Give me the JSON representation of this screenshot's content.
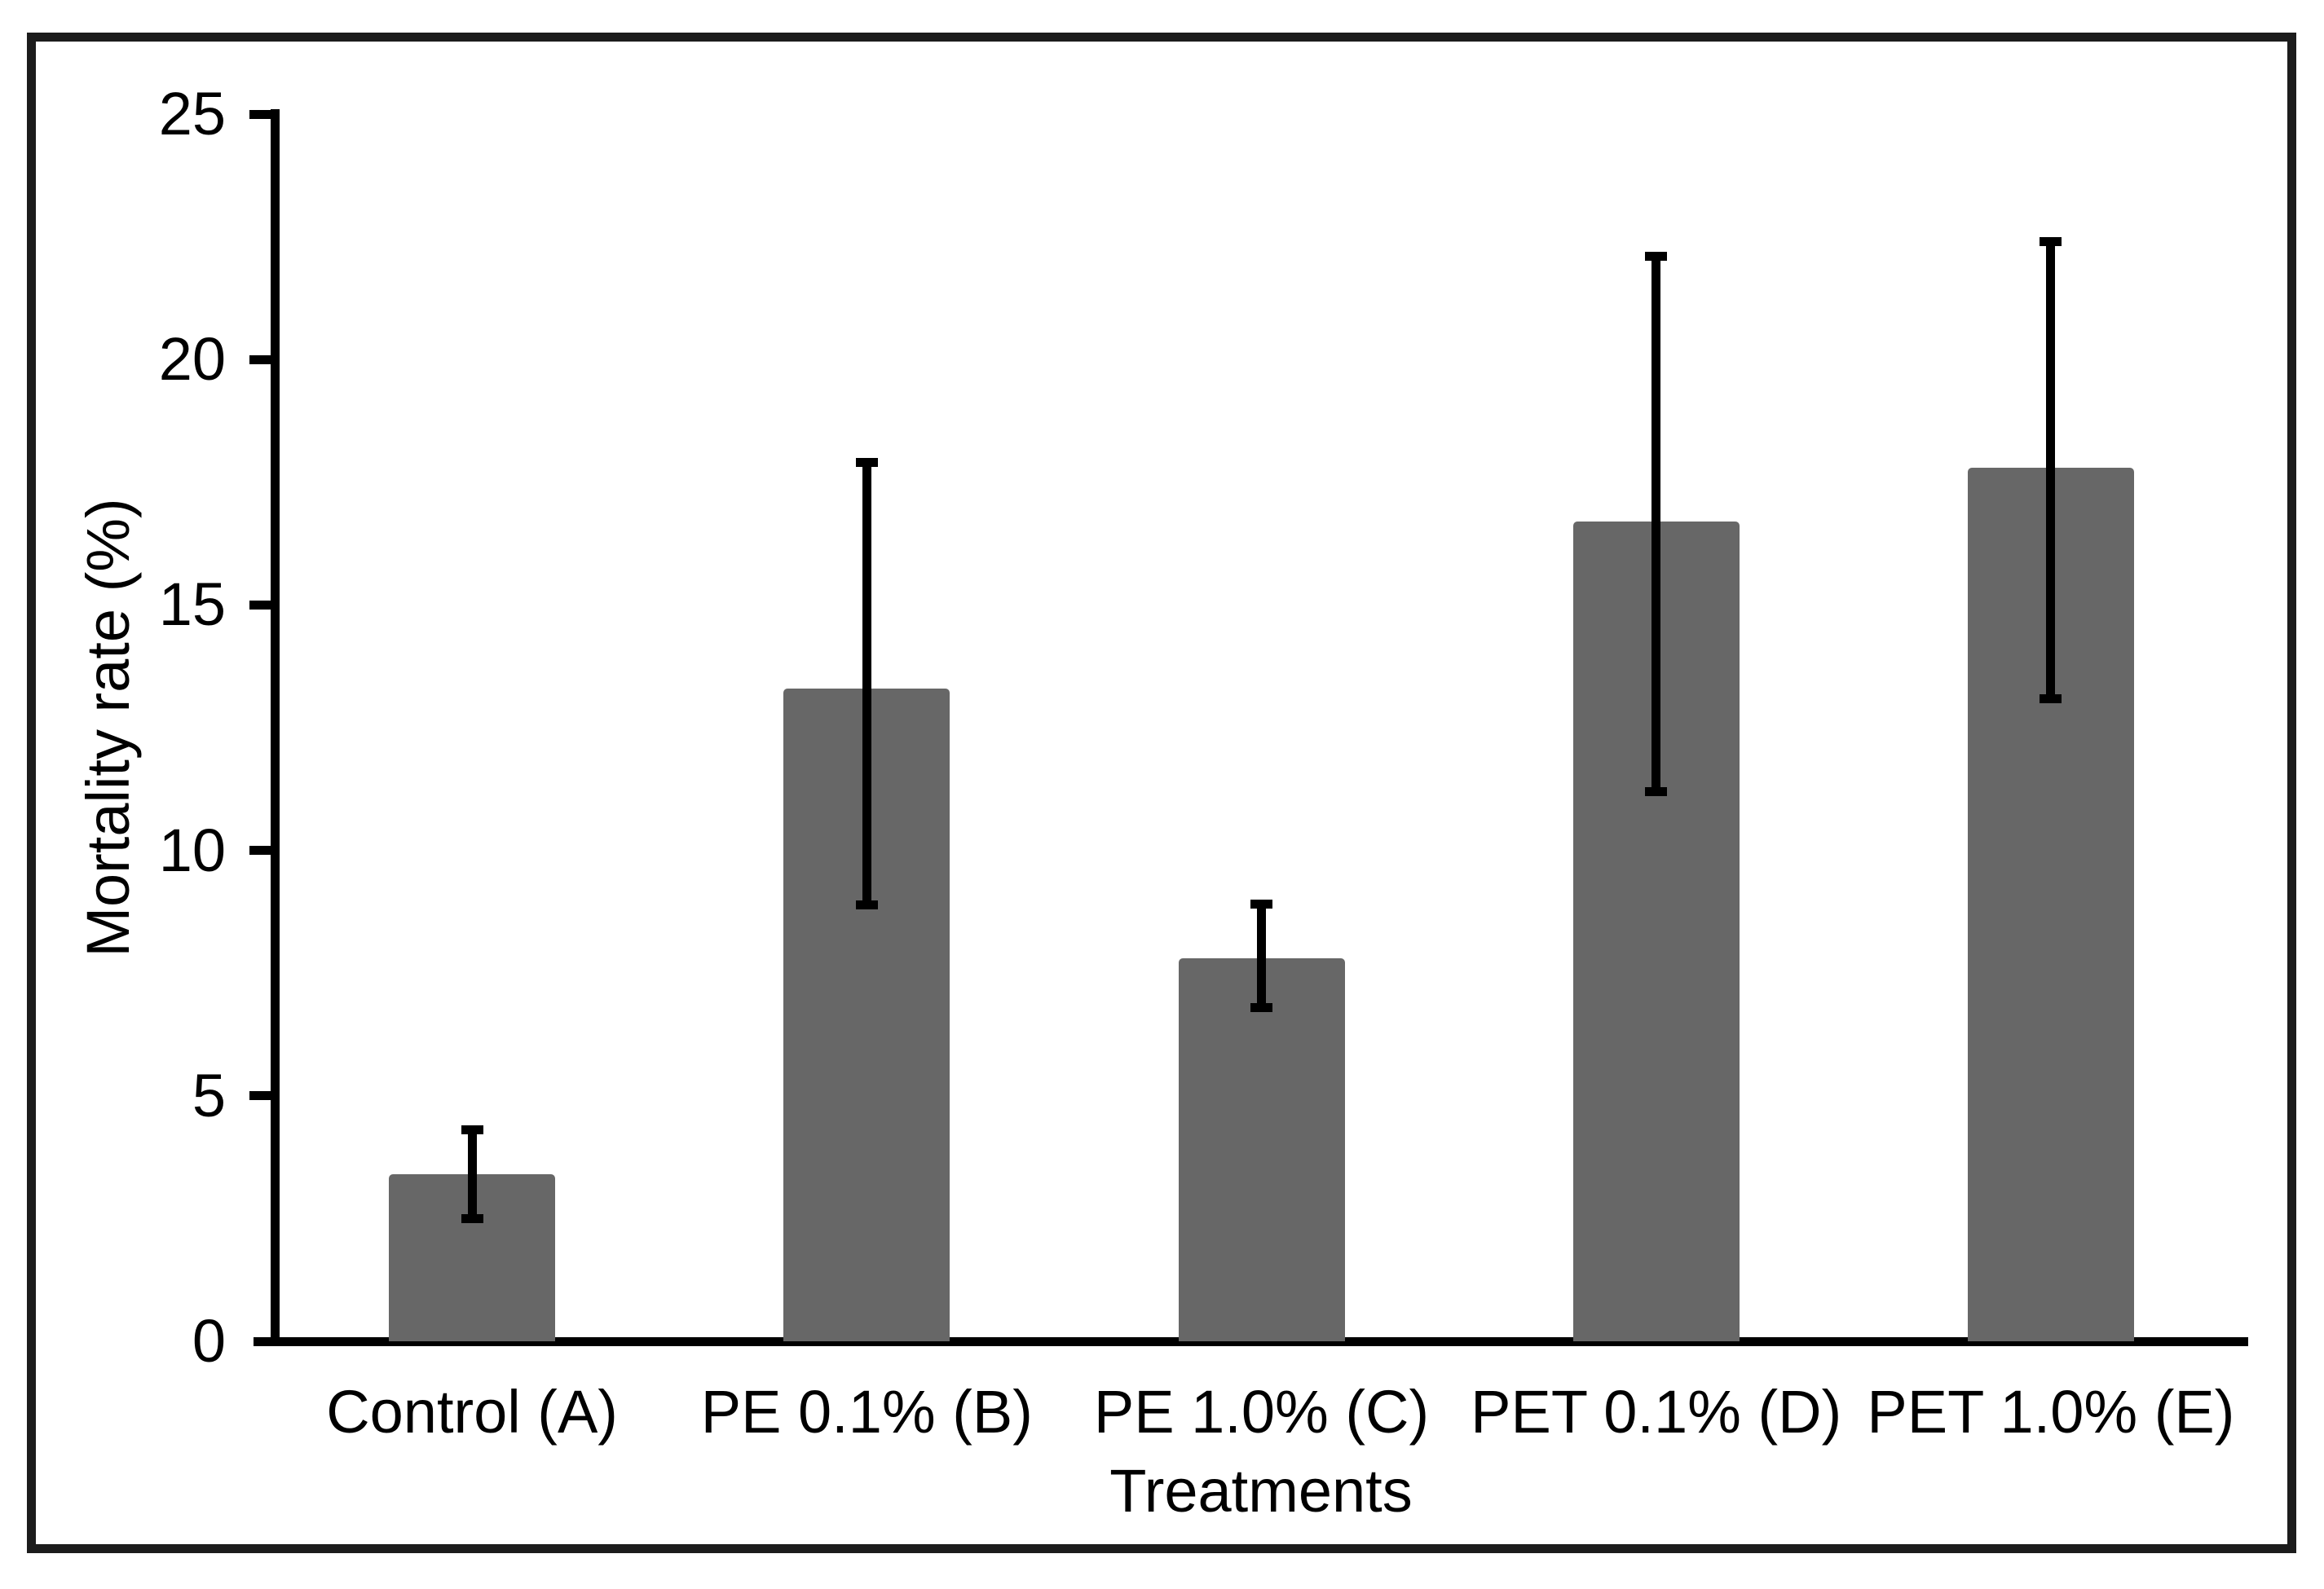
{
  "figure": {
    "background_color": "#ffffff",
    "frame_color": "#1c1c1c",
    "axis_color": "#000000",
    "text_color": "#000000"
  },
  "chart_data": {
    "type": "bar",
    "title": "",
    "xlabel": "Treatments",
    "ylabel": "Mortality rate (%)",
    "categories": [
      "Control (A)",
      "PE 0.1% (B)",
      "PE 1.0% (C)",
      "PET 0.1% (D)",
      "PET 1.0% (E)"
    ],
    "values": [
      3.4,
      13.3,
      7.8,
      16.7,
      17.8
    ],
    "error_low": [
      2.4,
      8.8,
      6.7,
      11.1,
      13.0
    ],
    "error_high": [
      4.4,
      18.0,
      9.0,
      22.2,
      22.5
    ],
    "ylim": [
      0,
      25
    ],
    "yticks": [
      0,
      5,
      10,
      15,
      20,
      25
    ],
    "bar_color": "#676767",
    "error_bar_color": "#000000",
    "grid": "off",
    "legend": "none"
  }
}
